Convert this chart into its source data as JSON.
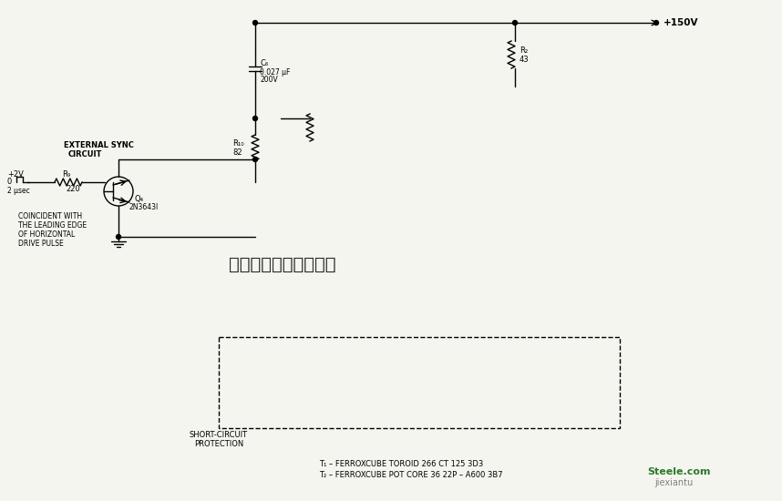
{
  "background_color": "#f5f5f0",
  "title": "",
  "fig_width": 8.58,
  "fig_height": 5.5,
  "dpi": 100,
  "watermark": "杭州柒睿科技有限公司",
  "bottom_text1": "T₁ – FERROXCUBE TOROID 266 CT 125 3D3",
  "bottom_text2": "T₂ – FERROXCUBE POT CORE 36 22P – A600 3B7",
  "brand1": "Steele.com",
  "brand2": "jiexiantu"
}
